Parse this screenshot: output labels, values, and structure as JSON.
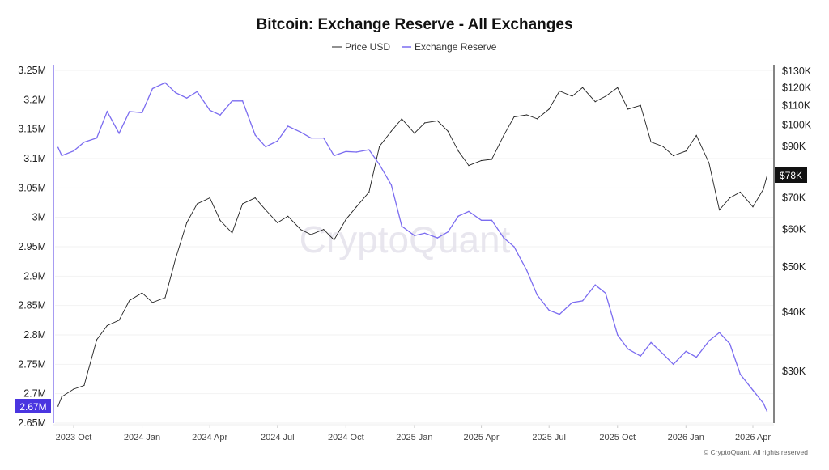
{
  "chart_data": {
    "type": "line",
    "title": "Bitcoin: Exchange Reserve - All Exchanges",
    "legend": {
      "placement": "top-center",
      "entries": [
        "Price USD",
        "Exchange Reserve"
      ]
    },
    "grid": true,
    "watermark": "CryptoQuant",
    "footer": "© CryptoQuant. All rights reserved",
    "x_ticks": [
      "2023 Oct",
      "2024 Jan",
      "2024 Apr",
      "2024 Jul",
      "2024 Oct",
      "2025 Jan",
      "2025 Apr",
      "2025 Jul",
      "2025 Oct",
      "2026 Jan",
      "2026 Apr"
    ],
    "x_tick_dates": [
      "2023-10-01",
      "2024-01-01",
      "2024-04-01",
      "2024-07-01",
      "2024-10-01",
      "2025-01-01",
      "2025-04-01",
      "2025-07-01",
      "2025-10-01",
      "2026-01-01",
      "2026-04-01"
    ],
    "left_axis": {
      "ylim": [
        2.65,
        3.25
      ],
      "unit": "M",
      "ticks": [
        "3.25M",
        "3.2M",
        "3.15M",
        "3.1M",
        "3.05M",
        "3M",
        "2.95M",
        "2.9M",
        "2.85M",
        "2.8M",
        "2.75M",
        "2.7M",
        "2.65M"
      ],
      "tick_values": [
        3.25,
        3.2,
        3.15,
        3.1,
        3.05,
        3.0,
        2.95,
        2.9,
        2.85,
        2.8,
        2.75,
        2.7,
        2.65
      ],
      "current_label": "2.67M",
      "current_value": 2.67
    },
    "right_axis": {
      "scale": "log",
      "ylim": [
        23,
        130
      ],
      "ticks": [
        "$130K",
        "$120K",
        "$110K",
        "$100K",
        "$90K",
        "$70K",
        "$60K",
        "$50K",
        "$40K",
        "$30K"
      ],
      "tick_values": [
        130,
        120,
        110,
        100,
        90,
        70,
        60,
        50,
        40,
        30
      ],
      "current_label": "$78K",
      "current_value": 78
    },
    "dates": [
      "2023-09-10",
      "2023-09-15",
      "2023-10-01",
      "2023-10-15",
      "2023-11-01",
      "2023-11-15",
      "2023-12-01",
      "2023-12-15",
      "2024-01-01",
      "2024-01-15",
      "2024-02-01",
      "2024-02-15",
      "2024-03-01",
      "2024-03-15",
      "2024-04-01",
      "2024-04-15",
      "2024-05-01",
      "2024-05-15",
      "2024-06-01",
      "2024-06-15",
      "2024-07-01",
      "2024-07-15",
      "2024-08-01",
      "2024-08-15",
      "2024-09-01",
      "2024-09-15",
      "2024-10-01",
      "2024-10-15",
      "2024-11-01",
      "2024-11-15",
      "2024-12-01",
      "2024-12-15",
      "2025-01-01",
      "2025-01-15",
      "2025-02-01",
      "2025-02-15",
      "2025-03-01",
      "2025-03-15",
      "2025-04-01",
      "2025-04-15",
      "2025-05-01",
      "2025-05-15",
      "2025-06-01",
      "2025-06-15",
      "2025-07-01",
      "2025-07-15",
      "2025-08-01",
      "2025-08-15",
      "2025-09-01",
      "2025-09-15",
      "2025-10-01",
      "2025-10-15",
      "2025-11-01",
      "2025-11-15",
      "2025-12-01",
      "2025-12-15",
      "2026-01-01",
      "2026-01-15",
      "2026-02-01",
      "2026-02-15",
      "2026-03-01",
      "2026-03-15",
      "2026-04-01",
      "2026-04-15",
      "2026-04-20"
    ],
    "series": [
      {
        "name": "Price USD",
        "axis": "right",
        "unit": "K USD",
        "color": "#222222",
        "values": [
          25.3,
          26.5,
          27.5,
          28,
          35,
          37.5,
          38.5,
          42.4,
          44,
          42,
          43,
          52,
          62,
          68,
          70,
          62.7,
          59,
          68,
          70,
          66,
          62,
          64,
          60,
          58.5,
          60,
          57,
          63,
          67,
          72,
          90,
          97,
          103,
          96,
          101,
          102,
          97,
          88,
          82,
          84,
          84.5,
          95,
          104,
          105,
          103,
          108,
          118,
          115,
          120,
          112,
          115,
          120,
          108,
          110,
          92,
          90,
          86,
          88,
          95,
          83,
          66,
          70,
          72,
          67,
          73,
          78
        ]
      },
      {
        "name": "Exchange Reserve",
        "axis": "left",
        "unit": "M BTC",
        "color": "#7b6cf0",
        "values": [
          3.119,
          3.105,
          3.113,
          3.128,
          3.135,
          3.18,
          3.143,
          3.18,
          3.178,
          3.219,
          3.229,
          3.212,
          3.203,
          3.214,
          3.182,
          3.174,
          3.198,
          3.198,
          3.14,
          3.12,
          3.13,
          3.155,
          3.145,
          3.135,
          3.135,
          3.105,
          3.112,
          3.111,
          3.115,
          3.09,
          3.055,
          2.985,
          2.969,
          2.973,
          2.965,
          2.975,
          3.002,
          3.01,
          2.995,
          2.995,
          2.965,
          2.95,
          2.91,
          2.868,
          2.842,
          2.835,
          2.855,
          2.858,
          2.885,
          2.871,
          2.8,
          2.776,
          2.764,
          2.787,
          2.768,
          2.75,
          2.772,
          2.762,
          2.79,
          2.804,
          2.785,
          2.733,
          2.706,
          2.684,
          2.67
        ]
      }
    ],
    "colors": {
      "reserve": "#7b6cf0",
      "reserve_badge": "#4a35e0",
      "price": "#222222",
      "grid": "#f0f0f0"
    }
  }
}
